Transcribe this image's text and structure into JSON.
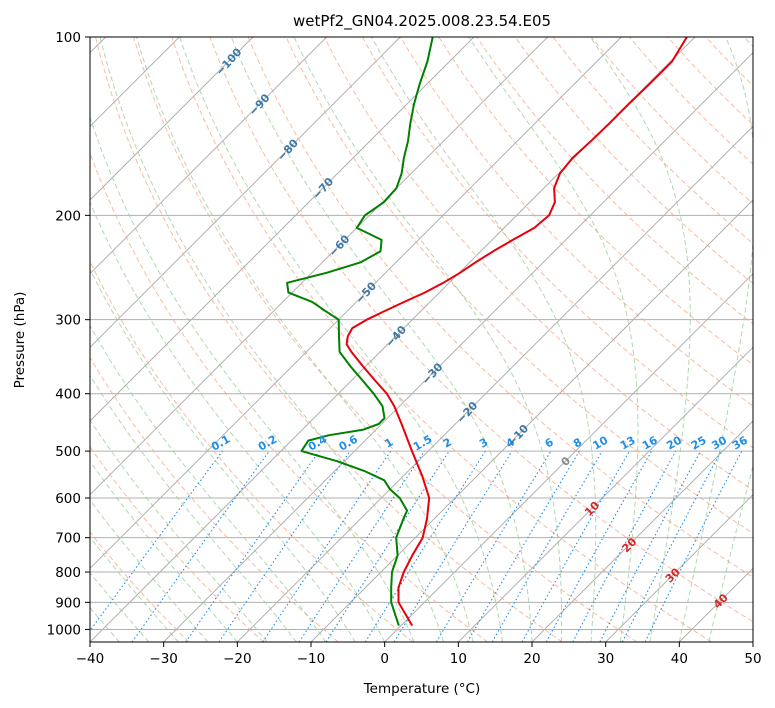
{
  "chart_data": {
    "type": "line",
    "title": "wetPf2_GN04.2025.008.23.54.E05",
    "xlabel": "Temperature (°C)",
    "ylabel": "Pressure (hPa)",
    "xlim": [
      -40,
      50
    ],
    "ylim": [
      1050,
      100
    ],
    "y_scale": "log",
    "skew_degrees": 45,
    "grid": true,
    "x_ticks": [
      -40,
      -30,
      -20,
      -10,
      0,
      10,
      20,
      30,
      40,
      50
    ],
    "y_ticks": [
      1000,
      900,
      800,
      700,
      600,
      500,
      400,
      300,
      200,
      100
    ],
    "series": [
      {
        "color": "#e8000b",
        "p": [
          985,
          950,
          900,
          850,
          800,
          750,
          700,
          650,
          600,
          550,
          500,
          450,
          420,
          400,
          380,
          360,
          340,
          330,
          320,
          310,
          300,
          290,
          280,
          270,
          260,
          250,
          240,
          230,
          220,
          210,
          200,
          190,
          180,
          170,
          160,
          150,
          140,
          130,
          120,
          110,
          100
        ],
        "values": [
          1.5,
          -0.5,
          -3.5,
          -5.5,
          -6.9,
          -8.0,
          -9.0,
          -11.0,
          -13.5,
          -17.5,
          -22.2,
          -27.3,
          -30.7,
          -33.4,
          -36.8,
          -40.3,
          -43.9,
          -45.6,
          -46.5,
          -47.0,
          -46.2,
          -44.9,
          -43.5,
          -42.0,
          -40.8,
          -39.9,
          -39.2,
          -38.3,
          -37.2,
          -35.9,
          -35.6,
          -36.6,
          -38.6,
          -39.8,
          -40.2,
          -40.0,
          -39.9,
          -39.9,
          -39.8,
          -39.8,
          -41.1
        ]
      },
      {
        "color": "#008000",
        "p": [
          985,
          950,
          900,
          850,
          800,
          750,
          700,
          650,
          630,
          600,
          580,
          560,
          540,
          520,
          500,
          480,
          470,
          460,
          450,
          440,
          420,
          400,
          380,
          360,
          340,
          320,
          300,
          290,
          280,
          270,
          260,
          250,
          240,
          230,
          220,
          210,
          200,
          190,
          180,
          170,
          160,
          150,
          140,
          130,
          120,
          110,
          100
        ],
        "values": [
          -0.3,
          -2.0,
          -4.5,
          -6.5,
          -8.5,
          -10.0,
          -12.6,
          -14.2,
          -14.8,
          -17.5,
          -20.0,
          -22.0,
          -26.0,
          -31.0,
          -37.2,
          -37.7,
          -35.6,
          -31.7,
          -30.4,
          -30.4,
          -32.3,
          -35.2,
          -38.5,
          -42.0,
          -45.5,
          -47.7,
          -50.0,
          -53.0,
          -56.0,
          -60.5,
          -62.0,
          -58.0,
          -54.8,
          -53.6,
          -55.0,
          -60.0,
          -60.6,
          -59.8,
          -60.0,
          -61.3,
          -63.1,
          -64.8,
          -66.9,
          -69.0,
          -71.0,
          -73.0,
          -75.6
        ]
      }
    ],
    "dry_adiabat_labels": [
      "-100",
      "-90",
      "-80",
      "-70",
      "-60",
      "-50",
      "-40",
      "-30",
      "-20",
      "-10"
    ],
    "mixing_ratio_labels": [
      "0.1",
      "0.2",
      "0.4",
      "0.6",
      "1",
      "1.5",
      "2",
      "3",
      "4",
      "6",
      "8",
      "10",
      "13",
      "16",
      "20",
      "25",
      "30",
      "36"
    ],
    "moist_adiabat_labels": [
      "0",
      "10",
      "20",
      "30",
      "40"
    ]
  }
}
